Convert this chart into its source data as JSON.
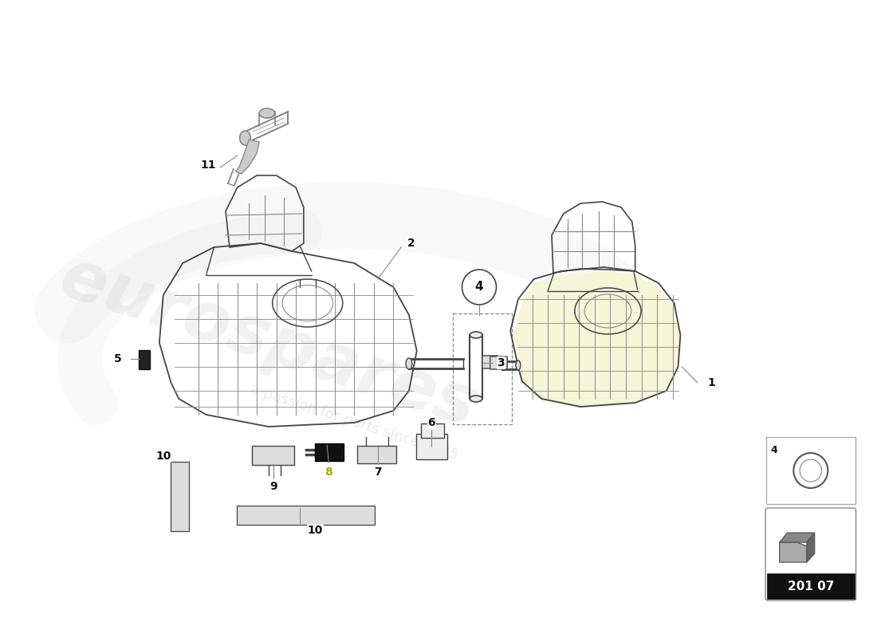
{
  "bg_color": "#ffffff",
  "line_color": "#444444",
  "light_line": "#888888",
  "dashed_color": "#888888",
  "label_color": "#111111",
  "yellow_label": "#aaaa00",
  "watermark_color": "#c8c8c8",
  "part_num_bg": "#111111",
  "part_num_text": "#ffffff",
  "part_number": "201 07",
  "figsize": [
    11.0,
    8.0
  ],
  "dpi": 100
}
